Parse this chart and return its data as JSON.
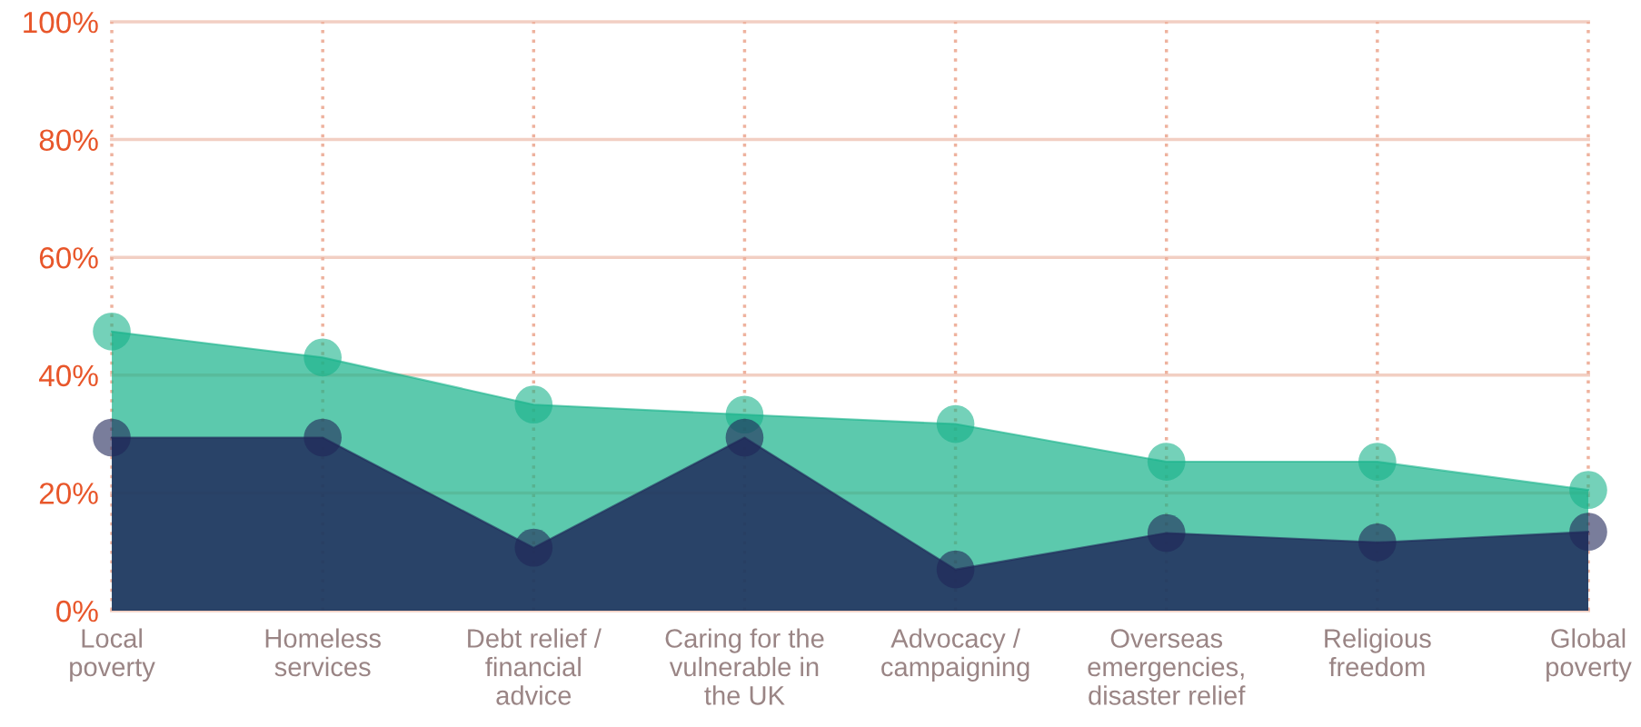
{
  "chart_data": {
    "type": "area",
    "categories": [
      "Local\npoverty",
      "Homeless\nservices",
      "Debt relief /\nfinancial\nadvice",
      "Caring for the\nvulnerable in\nthe UK",
      "Advocacy /\ncampaigning",
      "Overseas\nemergencies,\ndisaster relief",
      "Religious\nfreedom",
      "Global\npoverty"
    ],
    "series": [
      {
        "color": "#17b28a",
        "values": [
          47.4,
          43,
          35,
          33.3,
          31.7,
          25.3,
          25.3,
          20.5
        ]
      },
      {
        "color": "#1f2659",
        "values": [
          29.4,
          29.4,
          10.7,
          29.4,
          7,
          13.2,
          11.6,
          13.4
        ]
      }
    ],
    "ylim": [
      0,
      100
    ],
    "yticks": [
      {
        "value": 0,
        "label": "0%"
      },
      {
        "value": 20,
        "label": "20%"
      },
      {
        "value": 40,
        "label": "40%"
      },
      {
        "value": 60,
        "label": "60%"
      },
      {
        "value": 80,
        "label": "80%"
      },
      {
        "value": 100,
        "label": "100%"
      }
    ],
    "grid": true,
    "marker": "circle",
    "legend": false
  }
}
